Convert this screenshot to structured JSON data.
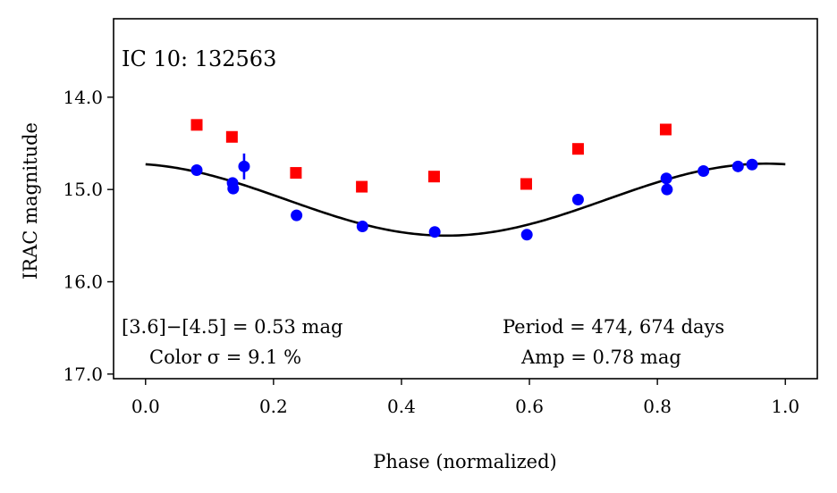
{
  "chart_data": {
    "type": "scatter",
    "title": "IC 10:  132563",
    "xlabel": "Phase (normalized)",
    "ylabel": "IRAC magnitude",
    "xlim": [
      -0.05,
      1.05
    ],
    "ylim": [
      17.05,
      13.15
    ],
    "y_inverted": true,
    "grid": false,
    "x_ticks": [
      0.0,
      0.2,
      0.4,
      0.6,
      0.8,
      1.0
    ],
    "x_tick_labels": [
      "0.0",
      "0.2",
      "0.4",
      "0.6",
      "0.8",
      "1.0"
    ],
    "y_ticks": [
      14.0,
      15.0,
      16.0,
      17.0
    ],
    "y_tick_labels": [
      "14.0",
      "15.0",
      "16.0",
      "17.0"
    ],
    "series": [
      {
        "name": "[3.6]",
        "color": "#ff0000",
        "marker": "square",
        "x": [
          0.08,
          0.135,
          0.235,
          0.338,
          0.451,
          0.595,
          0.676,
          0.813
        ],
        "y": [
          14.3,
          14.43,
          14.82,
          14.97,
          14.86,
          14.94,
          14.56,
          14.35
        ],
        "yerr": [
          0.02,
          0.02,
          0.02,
          0.02,
          0.02,
          0.02,
          0.05,
          0.02
        ]
      },
      {
        "name": "[4.5]",
        "color": "#0000ff",
        "marker": "circle",
        "x": [
          0.08,
          0.136,
          0.137,
          0.154,
          0.236,
          0.339,
          0.452,
          0.596,
          0.676,
          0.814,
          0.815,
          0.872,
          0.926,
          0.948
        ],
        "y": [
          14.79,
          14.93,
          14.99,
          14.75,
          15.28,
          15.4,
          15.46,
          15.49,
          15.11,
          14.88,
          15.0,
          14.8,
          14.75,
          14.73
        ],
        "yerr": [
          0.02,
          0.02,
          0.02,
          0.14,
          0.02,
          0.02,
          0.02,
          0.02,
          0.02,
          0.02,
          0.02,
          0.02,
          0.06,
          0.05
        ]
      }
    ],
    "model_curve": {
      "color": "#000000",
      "form": "sinusoid",
      "mean_mag": 15.11,
      "semi_amplitude": 0.39,
      "phase_of_faintest": 0.47
    },
    "annotations": {
      "color_index": "[3.6]−[4.5] = 0.53 mag",
      "color_sigma": "Color σ = 9.1 %",
      "period": "Period = 474, 674 days",
      "amplitude": "Amp = 0.78 mag"
    }
  }
}
